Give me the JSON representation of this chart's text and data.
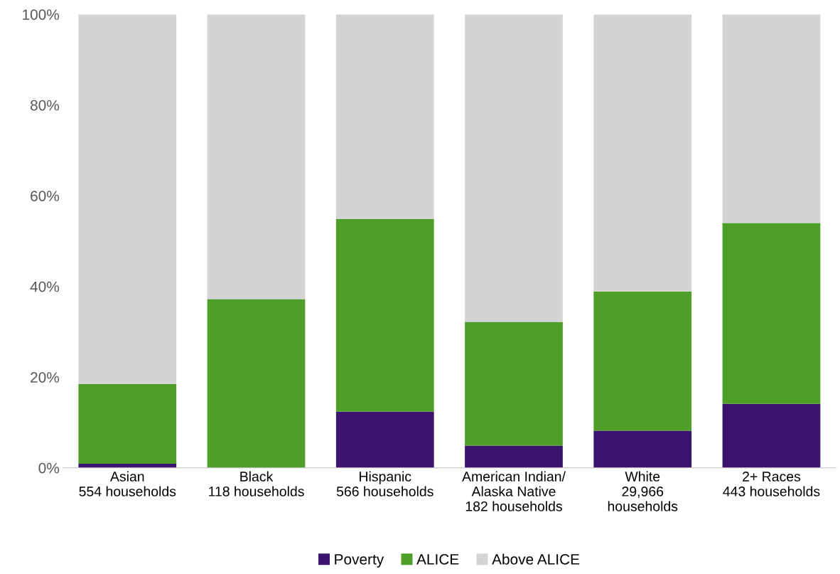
{
  "chart_data": {
    "type": "bar",
    "stacked": true,
    "categories": [
      "Asian\n554 households",
      "Black\n118 households",
      "Hispanic\n566 households",
      "American Indian/\nAlaska Native\n182 households",
      "White\n29,966\nhouseholds",
      "2+ Races\n443 households"
    ],
    "series": [
      {
        "name": "Poverty",
        "color": "#3b1470",
        "values": [
          0.9,
          0,
          12.4,
          4.9,
          8.2,
          14.1
        ]
      },
      {
        "name": "ALICE",
        "color": "#4d9f27",
        "values": [
          17.6,
          37.2,
          42.5,
          27.3,
          30.7,
          39.9
        ]
      },
      {
        "name": "Above ALICE",
        "color": "#d4d4d4",
        "values": [
          81.5,
          62.8,
          45.1,
          67.8,
          61.1,
          46.0
        ]
      }
    ],
    "ylim": [
      0,
      100
    ],
    "yticks": [
      {
        "value": 0,
        "label": "0%"
      },
      {
        "value": 20,
        "label": "20%"
      },
      {
        "value": 40,
        "label": "40%"
      },
      {
        "value": 60,
        "label": "60%"
      },
      {
        "value": 80,
        "label": "80%"
      },
      {
        "value": 100,
        "label": "100%"
      }
    ],
    "grid": false,
    "legend": "bottom"
  }
}
